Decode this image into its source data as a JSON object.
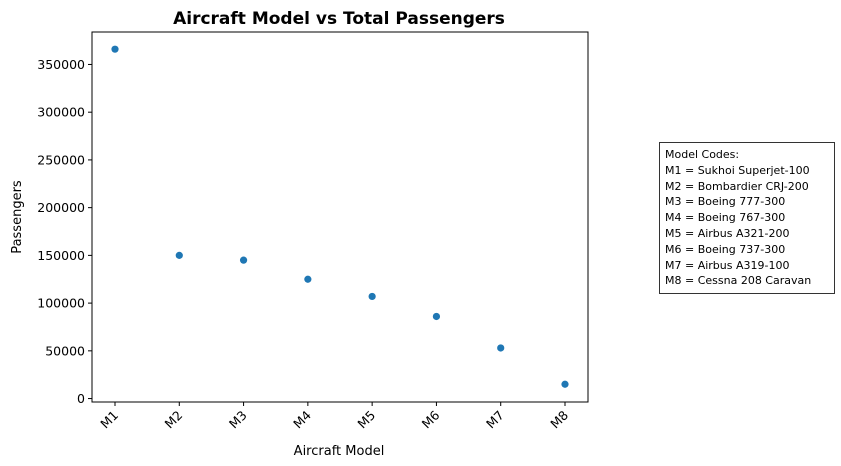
{
  "chart_data": {
    "type": "scatter",
    "title": "Aircraft Model vs Total Passengers",
    "xlabel": "Aircraft Model",
    "ylabel": "Passengers",
    "categories": [
      "M1",
      "M2",
      "M3",
      "M4",
      "M5",
      "M6",
      "M7",
      "M8"
    ],
    "values": [
      366000,
      150000,
      145000,
      125000,
      107000,
      86000,
      53000,
      15000
    ],
    "ylim": [
      -3600,
      384000
    ],
    "yticks": [
      "0",
      "50000",
      "100000",
      "150000",
      "200000",
      "250000",
      "300000",
      "350000"
    ],
    "grid": false,
    "marker_color": "#1f77b4"
  },
  "legend": {
    "title": "Model Codes:",
    "entries": [
      "M1 = Sukhoi Superjet-100",
      "M2 = Bombardier CRJ-200",
      "M3 = Boeing 777-300",
      "M4 = Boeing 767-300",
      "M5 = Airbus A321-200",
      "M6 = Boeing 737-300",
      "M7 = Airbus A319-100",
      "M8 = Cessna 208 Caravan"
    ]
  }
}
